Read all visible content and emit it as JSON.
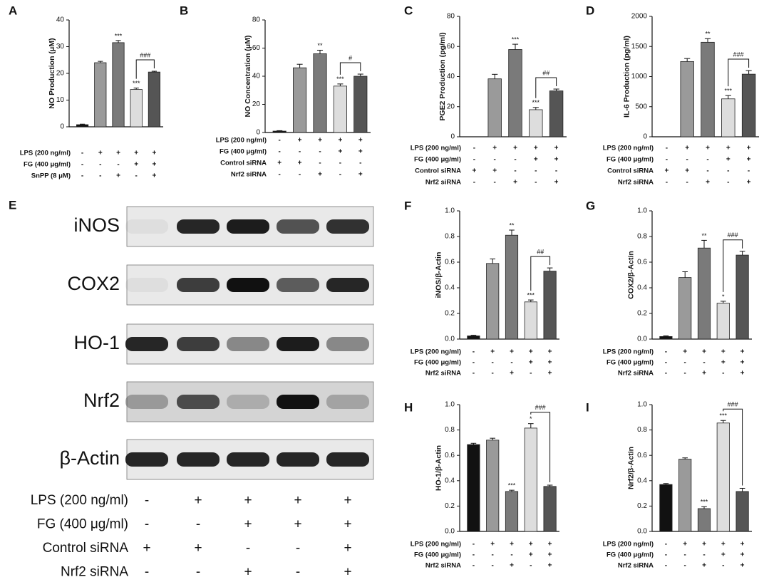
{
  "chart_data": [
    {
      "type": "bar",
      "panel": "A",
      "ylabel": "NO Production (μM)",
      "ylim": [
        0,
        40
      ],
      "yticks": [
        0,
        10,
        20,
        30,
        40
      ],
      "values": [
        0.8,
        24,
        31.5,
        14,
        20.5
      ],
      "errors": [
        0.2,
        0.5,
        0.8,
        0.5,
        0.3
      ],
      "colors": [
        "#111111",
        "#9a9a9a",
        "#7a7a7a",
        "#dddddd",
        "#555555"
      ],
      "stars": [
        null,
        null,
        "***",
        "***",
        null
      ],
      "bracket_label": "###",
      "conditions": [
        {
          "label": "LPS (200 ng/ml)",
          "signs": [
            "-",
            "+",
            "+",
            "+",
            "+"
          ]
        },
        {
          "label": "FG (400 μg/ml)",
          "signs": [
            "-",
            "-",
            "-",
            "+",
            "+"
          ]
        },
        {
          "label": "SnPP (8 μM)",
          "signs": [
            "-",
            "-",
            "+",
            "-",
            "+"
          ]
        }
      ]
    },
    {
      "type": "bar",
      "panel": "B",
      "ylabel": "NO Concentration (μM)",
      "ylim": [
        0,
        80
      ],
      "yticks": [
        0,
        20,
        40,
        60,
        80
      ],
      "values": [
        1,
        46,
        56,
        33,
        40
      ],
      "errors": [
        0.3,
        2.5,
        2.5,
        1.5,
        1.5
      ],
      "colors": [
        "#111111",
        "#9a9a9a",
        "#7a7a7a",
        "#dddddd",
        "#555555"
      ],
      "stars": [
        null,
        null,
        "**",
        "***",
        null
      ],
      "bracket_label": "#",
      "conditions": [
        {
          "label": "LPS (200 ng/ml)",
          "signs": [
            "-",
            "+",
            "+",
            "+",
            "+"
          ]
        },
        {
          "label": "FG (400 μg/ml)",
          "signs": [
            "-",
            "-",
            "-",
            "+",
            "+"
          ]
        },
        {
          "label": "Control siRNA",
          "signs": [
            "+",
            "+",
            "-",
            "-",
            "-"
          ]
        },
        {
          "label": "Nrf2 siRNA",
          "signs": [
            "-",
            "-",
            "+",
            "-",
            "+"
          ]
        }
      ]
    },
    {
      "type": "bar",
      "panel": "C",
      "ylabel": "PGE2 Production (pg/ml)",
      "ylim": [
        0,
        80
      ],
      "yticks": [
        0,
        20,
        40,
        60,
        80
      ],
      "values": [
        0,
        38.5,
        58,
        18,
        30.5
      ],
      "errors": [
        0,
        3,
        3.5,
        1.5,
        1.2
      ],
      "colors": [
        "#111111",
        "#9a9a9a",
        "#7a7a7a",
        "#dddddd",
        "#555555"
      ],
      "stars": [
        null,
        null,
        "***",
        "***",
        null
      ],
      "bracket_label": "##",
      "conditions": [
        {
          "label": "LPS (200 ng/ml)",
          "signs": [
            "-",
            "+",
            "+",
            "+",
            "+"
          ]
        },
        {
          "label": "FG (400 μg/ml)",
          "signs": [
            "-",
            "-",
            "-",
            "+",
            "+"
          ]
        },
        {
          "label": "Control siRNA",
          "signs": [
            "+",
            "+",
            "-",
            "-",
            "-"
          ]
        },
        {
          "label": "Nrf2 siRNA",
          "signs": [
            "-",
            "-",
            "+",
            "-",
            "+"
          ]
        }
      ]
    },
    {
      "type": "bar",
      "panel": "D",
      "ylabel": "IL-6 Production (pg/ml)",
      "ylim": [
        0,
        2000
      ],
      "yticks": [
        0,
        500,
        1000,
        1500,
        2000
      ],
      "values": [
        0,
        1250,
        1570,
        630,
        1040
      ],
      "errors": [
        0,
        50,
        60,
        55,
        60
      ],
      "colors": [
        "#111111",
        "#9a9a9a",
        "#7a7a7a",
        "#dddddd",
        "#555555"
      ],
      "stars": [
        null,
        null,
        "**",
        "***",
        null
      ],
      "bracket_label": "###",
      "conditions": [
        {
          "label": "LPS (200 ng/ml)",
          "signs": [
            "-",
            "+",
            "+",
            "+",
            "+"
          ]
        },
        {
          "label": "FG (400 μg/ml)",
          "signs": [
            "-",
            "-",
            "-",
            "+",
            "+"
          ]
        },
        {
          "label": "Control siRNA",
          "signs": [
            "+",
            "+",
            "-",
            "-",
            "-"
          ]
        },
        {
          "label": "Nrf2 siRNA",
          "signs": [
            "-",
            "-",
            "+",
            "-",
            "+"
          ]
        }
      ]
    },
    {
      "type": "bar",
      "panel": "F",
      "ylabel": "iNOS/β-Actin",
      "ylim": [
        0,
        1
      ],
      "yticks": [
        {
          "value": 0,
          "label": "0.0"
        },
        0.2,
        0.4,
        0.6,
        0.8,
        {
          "value": 1,
          "label": "1.0"
        }
      ],
      "values": [
        0.025,
        0.59,
        0.81,
        0.29,
        0.53
      ],
      "errors": [
        0.005,
        0.035,
        0.04,
        0.015,
        0.025
      ],
      "colors": [
        "#111111",
        "#9a9a9a",
        "#7a7a7a",
        "#dddddd",
        "#555555"
      ],
      "stars": [
        null,
        null,
        "**",
        "***",
        null
      ],
      "bracket_label": "##",
      "conditions": [
        {
          "label": "LPS (200 ng/ml)",
          "signs": [
            "-",
            "+",
            "+",
            "+",
            "+"
          ]
        },
        {
          "label": "FG (400 μg/ml)",
          "signs": [
            "-",
            "-",
            "-",
            "+",
            "+"
          ]
        },
        {
          "label": "Nrf2 siRNA",
          "signs": [
            "-",
            "-",
            "+",
            "-",
            "+"
          ]
        }
      ]
    },
    {
      "type": "bar",
      "panel": "G",
      "ylabel": "COX2/β-Actin",
      "ylim": [
        0,
        1
      ],
      "yticks": [
        {
          "value": 0,
          "label": "0.0"
        },
        0.2,
        0.4,
        0.6,
        0.8,
        {
          "value": 1,
          "label": "1.0"
        }
      ],
      "values": [
        0.02,
        0.48,
        0.71,
        0.28,
        0.655
      ],
      "errors": [
        0.005,
        0.045,
        0.06,
        0.015,
        0.03
      ],
      "colors": [
        "#111111",
        "#9a9a9a",
        "#7a7a7a",
        "#dddddd",
        "#555555"
      ],
      "stars": [
        null,
        null,
        "**",
        "*",
        null
      ],
      "bracket_label": "###",
      "conditions": [
        {
          "label": "LPS (200 ng/ml)",
          "signs": [
            "-",
            "+",
            "+",
            "+",
            "+"
          ]
        },
        {
          "label": "FG (400 μg/ml)",
          "signs": [
            "-",
            "-",
            "-",
            "+",
            "+"
          ]
        },
        {
          "label": "Nrf2 siRNA",
          "signs": [
            "-",
            "-",
            "+",
            "-",
            "+"
          ]
        }
      ]
    },
    {
      "type": "bar",
      "panel": "H",
      "ylabel": "HO-1/β-Actin",
      "ylim": [
        0,
        1
      ],
      "yticks": [
        {
          "value": 0,
          "label": "0.0"
        },
        0.2,
        0.4,
        0.6,
        0.8,
        {
          "value": 1,
          "label": "1.0"
        }
      ],
      "values": [
        0.685,
        0.72,
        0.315,
        0.815,
        0.355
      ],
      "errors": [
        0.01,
        0.015,
        0.01,
        0.035,
        0.01
      ],
      "colors": [
        "#111111",
        "#9a9a9a",
        "#7a7a7a",
        "#dddddd",
        "#555555"
      ],
      "stars": [
        null,
        null,
        "***",
        "*",
        null
      ],
      "bracket_label": "###",
      "conditions": [
        {
          "label": "LPS (200 ng/ml)",
          "signs": [
            "-",
            "+",
            "+",
            "+",
            "+"
          ]
        },
        {
          "label": "FG (400 μg/ml)",
          "signs": [
            "-",
            "-",
            "-",
            "+",
            "+"
          ]
        },
        {
          "label": "Nrf2 siRNA",
          "signs": [
            "-",
            "-",
            "+",
            "-",
            "+"
          ]
        }
      ]
    },
    {
      "type": "bar",
      "panel": "I",
      "ylabel": "Nrf2/β-Actin",
      "ylim": [
        0,
        1
      ],
      "yticks": [
        {
          "value": 0,
          "label": "0.0"
        },
        0.2,
        0.4,
        0.6,
        0.8,
        {
          "value": 1,
          "label": "1.0"
        }
      ],
      "values": [
        0.37,
        0.57,
        0.18,
        0.855,
        0.315
      ],
      "errors": [
        0.008,
        0.01,
        0.015,
        0.02,
        0.025
      ],
      "colors": [
        "#111111",
        "#9a9a9a",
        "#7a7a7a",
        "#dddddd",
        "#555555"
      ],
      "stars": [
        null,
        null,
        "***",
        "***",
        null
      ],
      "bracket_label": "###",
      "conditions": [
        {
          "label": "LPS (200 ng/ml)",
          "signs": [
            "-",
            "+",
            "+",
            "+",
            "+"
          ]
        },
        {
          "label": "FG (400 μg/ml)",
          "signs": [
            "-",
            "-",
            "-",
            "+",
            "+"
          ]
        },
        {
          "label": "Nrf2 siRNA",
          "signs": [
            "-",
            "-",
            "+",
            "-",
            "+"
          ]
        }
      ]
    }
  ],
  "blot": {
    "panel": "E",
    "rows": [
      {
        "label": "iNOS",
        "bands": [
          0.05,
          0.9,
          0.95,
          0.7,
          0.85
        ]
      },
      {
        "label": "COX2",
        "bands": [
          0.05,
          0.8,
          1.0,
          0.65,
          0.9
        ]
      },
      {
        "label": "HO-1",
        "bands": [
          0.9,
          0.8,
          0.45,
          0.95,
          0.45
        ]
      },
      {
        "label": "Nrf2",
        "bands": [
          0.3,
          0.7,
          0.2,
          1.0,
          0.25
        ]
      },
      {
        "label": "β-Actin",
        "bands": [
          0.9,
          0.9,
          0.9,
          0.9,
          0.9
        ]
      }
    ],
    "conditions": [
      {
        "label": "LPS (200 ng/ml)",
        "signs": [
          "-",
          "+",
          "+",
          "+",
          "+"
        ]
      },
      {
        "label": "FG (400 μg/ml)",
        "signs": [
          "-",
          "-",
          "+",
          "+",
          "+"
        ]
      },
      {
        "label": "Control siRNA",
        "signs": [
          "+",
          "+",
          "-",
          "-",
          "+"
        ]
      },
      {
        "label": "Nrf2 siRNA",
        "signs": [
          "-",
          "-",
          "+",
          "-",
          "+"
        ]
      }
    ]
  }
}
